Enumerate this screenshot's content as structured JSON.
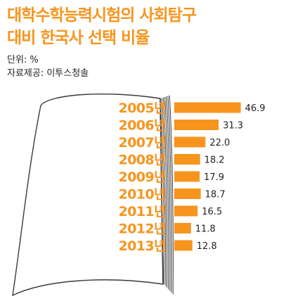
{
  "title_lines": [
    "대학수학능력시험의 사회탐구",
    "대비 한국사 선택 비율"
  ],
  "unit_text": "단위: %",
  "source_text": "자료제공: 이투스청솔",
  "colors": {
    "title": "#f7941d",
    "bar": "#f7941d",
    "year_label": "#f7941d",
    "value_label": "#231f20",
    "book_line": "#3a3a3a"
  },
  "chart_data": {
    "type": "bar",
    "orientation": "horizontal",
    "categories": [
      "2005년",
      "2006년",
      "2007년",
      "2008년",
      "2009년",
      "2010년",
      "2011년",
      "2012년",
      "2013년"
    ],
    "values": [
      46.9,
      31.3,
      22.0,
      18.2,
      17.9,
      18.7,
      16.5,
      11.8,
      12.8
    ],
    "value_labels": [
      "46.9",
      "31.3",
      "22.0",
      "18.2",
      "17.9",
      "18.7",
      "16.5",
      "11.8",
      "12.8"
    ],
    "title": "대학수학능력시험의 사회탐구 대비 한국사 선택 비율",
    "unit": "%",
    "xlim": [
      0,
      50
    ],
    "grid": false
  }
}
